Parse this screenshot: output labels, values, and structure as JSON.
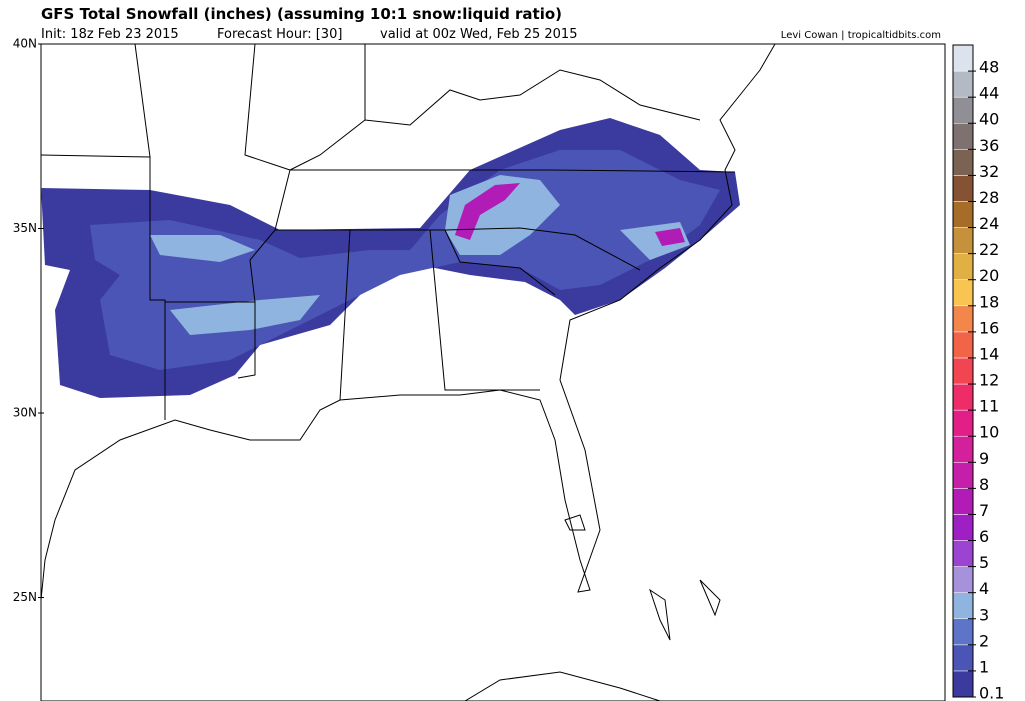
{
  "header": {
    "title": "GFS Total Snowfall (inches) (assuming 10:1 snow:liquid ratio)",
    "init": "Init: 18z Feb 23 2015",
    "forecast_hour": "Forecast Hour: [30]",
    "valid": "valid at 00z Wed, Feb 25 2015",
    "credit": "Levi Cowan | tropicaltidbits.com"
  },
  "map": {
    "lat_ticks": [
      {
        "value": 40,
        "label": "40N"
      },
      {
        "value": 35,
        "label": "35N"
      },
      {
        "value": 30,
        "label": "30N"
      },
      {
        "value": 25,
        "label": "25N"
      }
    ]
  },
  "colorbar": {
    "levels": [
      0.1,
      1,
      2,
      3,
      4,
      5,
      6,
      7,
      8,
      9,
      10,
      11,
      12,
      14,
      16,
      18,
      20,
      22,
      24,
      28,
      32,
      36,
      40,
      44,
      48
    ],
    "colors": [
      "#3b3b9f",
      "#4b55b5",
      "#5e74c8",
      "#8fb4df",
      "#a592db",
      "#9c44d2",
      "#9e1fc4",
      "#b21cb6",
      "#c51ea8",
      "#d4209a",
      "#e21f86",
      "#ee2c68",
      "#f24552",
      "#f26448",
      "#f3864a",
      "#f8c452",
      "#e0b045",
      "#c5913a",
      "#a56d28",
      "#855233",
      "#7b6354",
      "#7d7270",
      "#8f8f95",
      "#b3bac4",
      "#dde3ec"
    ]
  }
}
